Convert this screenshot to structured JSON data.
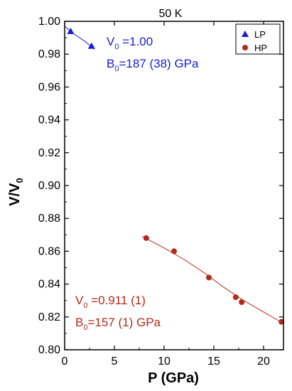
{
  "chart_data": {
    "type": "scatter",
    "title": "50 K",
    "xlabel": "P (GPa)",
    "ylabel_main": "V/V",
    "ylabel_sub": "0",
    "xlim": [
      0,
      22
    ],
    "ylim": [
      0.8,
      1.0
    ],
    "xticks": [
      0,
      5,
      10,
      15,
      20
    ],
    "yticks": [
      0.8,
      0.82,
      0.84,
      0.86,
      0.88,
      0.9,
      0.92,
      0.94,
      0.96,
      0.98,
      1.0
    ],
    "ytick_labels": [
      "0.80",
      "0.82",
      "0.84",
      "0.86",
      "0.88",
      "0.90",
      "0.92",
      "0.94",
      "0.96",
      "0.98",
      "1.00"
    ],
    "legend_position": "top-right",
    "series": [
      {
        "name": "LP",
        "marker": "triangle",
        "color": "#1a1ad6",
        "points": [
          [
            0.6,
            0.994
          ],
          [
            2.7,
            0.985
          ]
        ],
        "fit": [
          [
            0.0,
            0.997
          ],
          [
            1.0,
            0.992
          ],
          [
            2.0,
            0.988
          ],
          [
            3.0,
            0.983
          ]
        ]
      },
      {
        "name": "HP",
        "marker": "circle",
        "color": "#b22a1a",
        "points": [
          [
            8.2,
            0.868
          ],
          [
            11.0,
            0.86
          ],
          [
            14.5,
            0.844
          ],
          [
            17.2,
            0.832
          ],
          [
            17.8,
            0.829
          ],
          [
            21.8,
            0.817
          ]
        ],
        "fit": [
          [
            7.8,
            0.869
          ],
          [
            10.0,
            0.862
          ],
          [
            12.0,
            0.855
          ],
          [
            14.0,
            0.847
          ],
          [
            16.0,
            0.838
          ],
          [
            18.0,
            0.83
          ],
          [
            20.0,
            0.823
          ],
          [
            22.0,
            0.816
          ]
        ]
      }
    ],
    "annotations": [
      {
        "color": "#1a1ad6",
        "lines": [
          {
            "main": "V",
            "sub": "0",
            "rest": " =1.00"
          },
          {
            "main": "B",
            "sub": "0",
            "rest": "=187 (38) GPa"
          }
        ]
      },
      {
        "color": "#b22a1a",
        "lines": [
          {
            "main": "V",
            "sub": "0",
            "rest": " =0.911 (1)"
          },
          {
            "main": "B",
            "sub": "0",
            "rest": "=157 (1) GPa"
          }
        ]
      }
    ]
  }
}
